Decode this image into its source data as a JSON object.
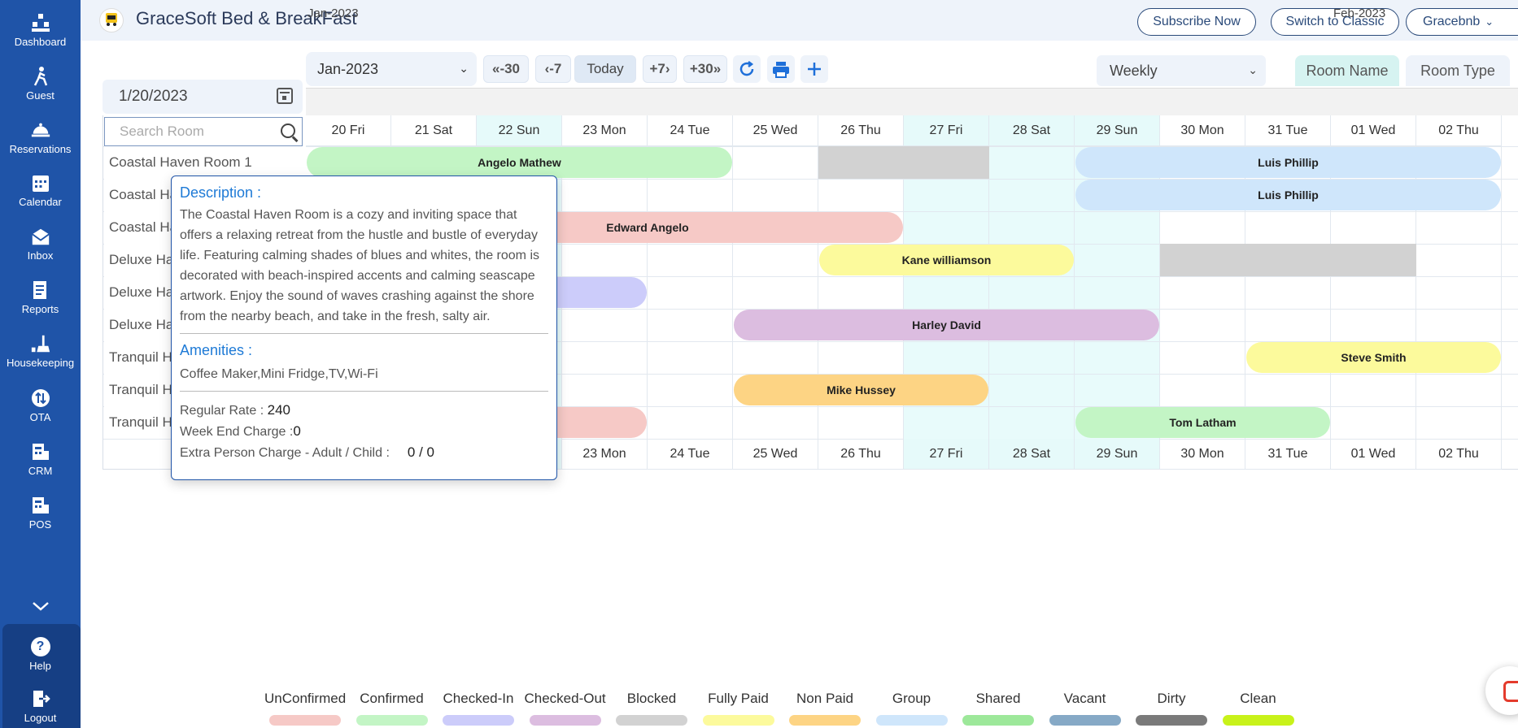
{
  "app": {
    "title": "GraceSoft Bed & BreakFast",
    "logo_text": "BED & BREAKFAST"
  },
  "header": {
    "subscribe": "Subscribe Now",
    "switch": "Switch to Classic",
    "user": "Gracebnb"
  },
  "sidebar": {
    "items": [
      {
        "label": "Dashboard",
        "icon": "dashboard-icon"
      },
      {
        "label": "Guest",
        "icon": "guest-icon"
      },
      {
        "label": "Reservations",
        "icon": "reservations-icon"
      },
      {
        "label": "Calendar",
        "icon": "calendar-icon"
      },
      {
        "label": "Inbox",
        "icon": "inbox-icon"
      },
      {
        "label": "Reports",
        "icon": "reports-icon"
      },
      {
        "label": "Housekeeping",
        "icon": "housekeeping-icon"
      },
      {
        "label": "OTA",
        "icon": "ota-icon"
      },
      {
        "label": "CRM",
        "icon": "crm-icon"
      },
      {
        "label": "POS",
        "icon": "pos-icon"
      }
    ],
    "help": "Help",
    "logout": "Logout"
  },
  "toolbar": {
    "month": "Jan-2023",
    "back30": "-30",
    "back7": "-7",
    "today": "Today",
    "fwd7": "+7",
    "fwd30": "+30",
    "view": "Weekly",
    "room_name": "Room Name",
    "room_type": "Room Type"
  },
  "date": {
    "value": "1/20/2023"
  },
  "search": {
    "placeholder": "Search Room"
  },
  "calendar": {
    "month1": "Jan-2023",
    "month2": "Feb-2023",
    "days": [
      "20 Fri",
      "21 Sat",
      "22 Sun",
      "23 Mon",
      "24 Tue",
      "25 Wed",
      "26 Thu",
      "27 Fri",
      "28 Sat",
      "29 Sun",
      "30 Mon",
      "31 Tue",
      "01 Wed",
      "02 Thu"
    ],
    "highlight_days": [
      2,
      7,
      8,
      9
    ],
    "rooms": [
      "Coastal Haven Room 1",
      "Coastal Haven Room 2",
      "Coastal Haven Room 3",
      "Deluxe Haven Room 1",
      "Deluxe Haven Room 2",
      "Deluxe Haven Room 3",
      "Tranquil Haven Room 1",
      "Tranquil Haven Room 2",
      "Tranquil Haven Room 3"
    ],
    "bookings": [
      {
        "guest": "Angelo Mathew",
        "row": 0,
        "start": 0,
        "span": 5,
        "color": "#c3f5c5"
      },
      {
        "guest": "Luis Phillip",
        "row": 0,
        "start": 9,
        "span": 5,
        "color": "#cfe6fb"
      },
      {
        "guest": "Luis Phillip",
        "row": 1,
        "start": 9,
        "span": 5,
        "color": "#cfe6fb"
      },
      {
        "guest": "Edward Angelo",
        "row": 2,
        "start": 1,
        "span": 6,
        "color": "#f6c9c6"
      },
      {
        "guest": "Kane williamson",
        "row": 3,
        "start": 6,
        "span": 3,
        "color": "#fcfa9c"
      },
      {
        "guest": "ez",
        "row": 4,
        "start": 1,
        "span": 3,
        "color": "#ccccfa"
      },
      {
        "guest": "Harley David",
        "row": 5,
        "start": 5,
        "span": 5,
        "color": "#dcbde0"
      },
      {
        "guest": "Steve Smith",
        "row": 6,
        "start": 11,
        "span": 3,
        "color": "#fcfa9c"
      },
      {
        "guest": "Mike Hussey",
        "row": 7,
        "start": 5,
        "span": 3,
        "color": "#fdd484"
      },
      {
        "guest": "Tom Latham",
        "row": 8,
        "start": 9,
        "span": 3,
        "color": "#c3f5c5"
      },
      {
        "guest": "",
        "row": 8,
        "start": 1,
        "span": 3,
        "color": "#f6c9c6"
      }
    ],
    "blocked": [
      {
        "row": 0,
        "start": 6,
        "span": 2
      },
      {
        "row": 3,
        "start": 10,
        "span": 3
      }
    ]
  },
  "tooltip": {
    "desc_title": "Description :",
    "desc_text": "The Coastal Haven Room is a cozy and inviting space that offers a relaxing retreat from the hustle and bustle of everyday life. Featuring calming shades of blues and whites, the room is decorated with beach-inspired accents and calming seascape artwork. Enjoy the sound of waves crashing against the shore from the nearby beach, and take in the fresh, salty air.",
    "amen_title": "Amenities :",
    "amen_text": "Coffee Maker,Mini Fridge,TV,Wi-Fi",
    "rate_label": "Regular Rate :",
    "rate_value": "240",
    "weekend_label": "Week End Charge :",
    "weekend_value": "0",
    "extra_label": "Extra Person Charge - Adult / Child :",
    "extra_value": "0 / 0"
  },
  "legend": [
    {
      "label": "UnConfirmed",
      "color": "#f6c9c6"
    },
    {
      "label": "Confirmed",
      "color": "#c3f5c5"
    },
    {
      "label": "Checked-In",
      "color": "#ccccfa"
    },
    {
      "label": "Checked-Out",
      "color": "#dcbde0"
    },
    {
      "label": "Blocked",
      "color": "#d2d2d2"
    },
    {
      "label": "Fully Paid",
      "color": "#fcfa9c"
    },
    {
      "label": "Non Paid",
      "color": "#fdd484"
    },
    {
      "label": "Group",
      "color": "#cfe6fb"
    },
    {
      "label": "Shared",
      "color": "#9de89a"
    },
    {
      "label": "Vacant",
      "color": "#86a9c6"
    },
    {
      "label": "Dirty",
      "color": "#7a7a7a"
    },
    {
      "label": "Clean",
      "color": "#c8f21a"
    }
  ]
}
